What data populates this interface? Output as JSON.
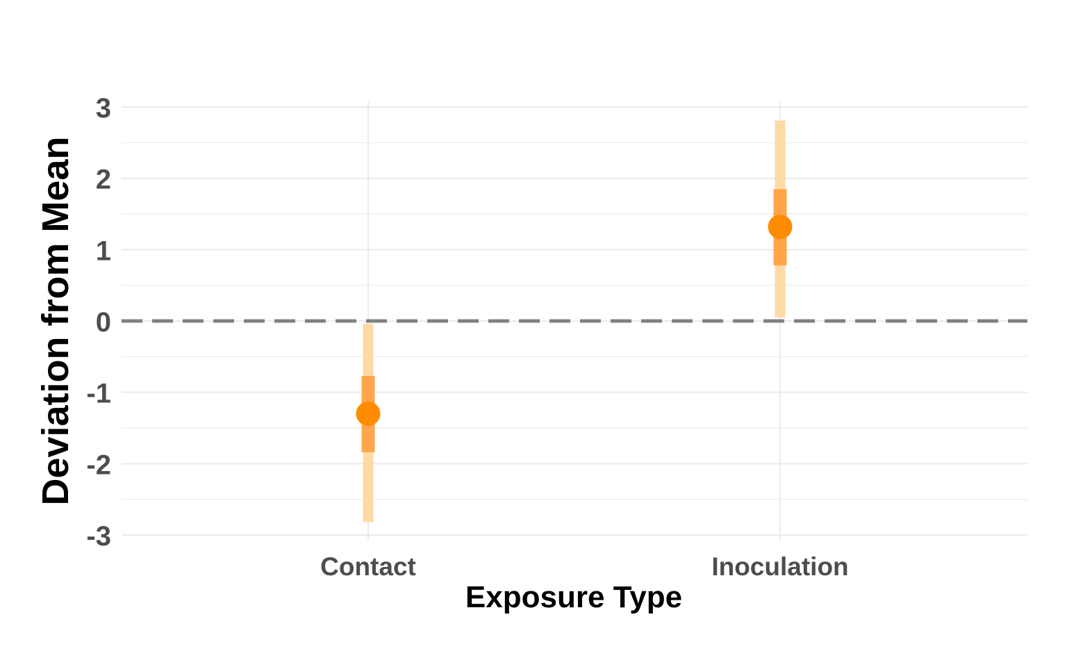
{
  "chart_data": {
    "type": "pointrange",
    "title": "",
    "xlabel": "Exposure Type",
    "ylabel": "Deviation from Mean",
    "categories": [
      "Contact",
      "Inoculation"
    ],
    "ylim": [
      -3,
      3
    ],
    "yticks": [
      "-3",
      "-2",
      "-1",
      "0",
      "1",
      "2",
      "3"
    ],
    "reference_line": {
      "y": 0,
      "style": "dashed"
    },
    "grid": true,
    "legend": "none",
    "series": [
      {
        "points": [
          {
            "category": "Contact",
            "y": -1.3,
            "inner": [
              -1.84,
              -0.77
            ],
            "outer": [
              -2.82,
              -0.04
            ]
          },
          {
            "category": "Inoculation",
            "y": 1.32,
            "inner": [
              0.78,
              1.85
            ],
            "outer": [
              0.05,
              2.81
            ]
          }
        ]
      }
    ],
    "colors": {
      "point": "#ff8c00",
      "inner_interval": "#ffa64d",
      "outer_interval": "#ffd9a6",
      "grid": "#ebebeb",
      "reference_line": "#808080"
    }
  }
}
